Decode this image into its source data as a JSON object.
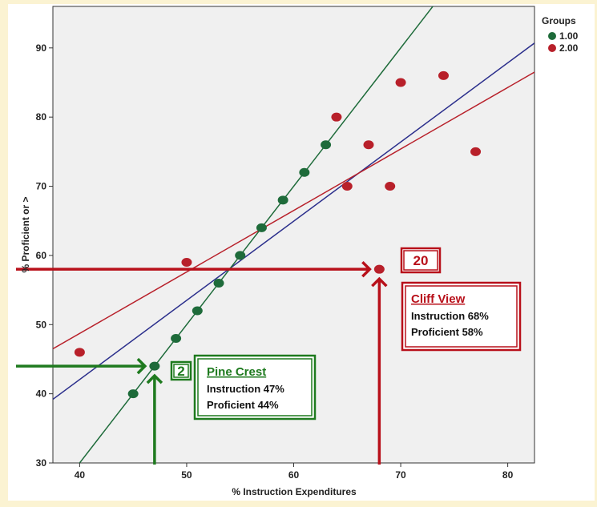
{
  "chart_data": {
    "type": "scatter",
    "xlabel": "% Instruction Expenditures",
    "ylabel": "% Proficient or >",
    "xlim": [
      37.5,
      82.5
    ],
    "ylim": [
      30,
      96
    ],
    "x_ticks": [
      40,
      50,
      60,
      70,
      80
    ],
    "y_ticks": [
      30,
      40,
      50,
      60,
      70,
      80,
      90
    ],
    "grid": false,
    "legend": {
      "title": "Groups",
      "position": "top-right"
    },
    "series": [
      {
        "name": "1.00",
        "color": "#1e6b3a",
        "points": [
          {
            "x": 45,
            "y": 40
          },
          {
            "x": 47,
            "y": 44
          },
          {
            "x": 49,
            "y": 48
          },
          {
            "x": 51,
            "y": 52
          },
          {
            "x": 53,
            "y": 56
          },
          {
            "x": 55,
            "y": 60
          },
          {
            "x": 57,
            "y": 64
          },
          {
            "x": 59,
            "y": 68
          },
          {
            "x": 61,
            "y": 72
          },
          {
            "x": 63,
            "y": 76
          }
        ],
        "fit_line": [
          {
            "x": 37.5,
            "y": 25
          },
          {
            "x": 68,
            "y": 86
          },
          {
            "x": 73.5,
            "y": 97
          }
        ]
      },
      {
        "name": "2.00",
        "color": "#b8202a",
        "points": [
          {
            "x": 40,
            "y": 46
          },
          {
            "x": 50,
            "y": 59
          },
          {
            "x": 64,
            "y": 80
          },
          {
            "x": 65,
            "y": 70
          },
          {
            "x": 67,
            "y": 76
          },
          {
            "x": 68,
            "y": 58
          },
          {
            "x": 69,
            "y": 70
          },
          {
            "x": 70,
            "y": 85
          },
          {
            "x": 74,
            "y": 86
          },
          {
            "x": 77,
            "y": 75
          }
        ],
        "fit_line": [
          {
            "x": 37.5,
            "y": 46.5
          },
          {
            "x": 82.5,
            "y": 86.5
          }
        ]
      }
    ],
    "overall_fit_line": {
      "color": "#2b2f8c",
      "points": [
        {
          "x": 37.5,
          "y": 39.2
        },
        {
          "x": 82.5,
          "y": 90.7
        }
      ]
    },
    "annotations": [
      {
        "id": "pine-crest",
        "badge": "2",
        "title": "Pine Crest",
        "lines": [
          "Instruction 47%",
          "Proficient 44%"
        ],
        "x": 47,
        "y": 44,
        "color": "#1e7a1e"
      },
      {
        "id": "cliff-view",
        "badge": "20",
        "title": "Cliff View",
        "lines": [
          "Instruction 68%",
          "Proficient 58%"
        ],
        "x": 68,
        "y": 58,
        "color": "#b8101a"
      }
    ]
  }
}
